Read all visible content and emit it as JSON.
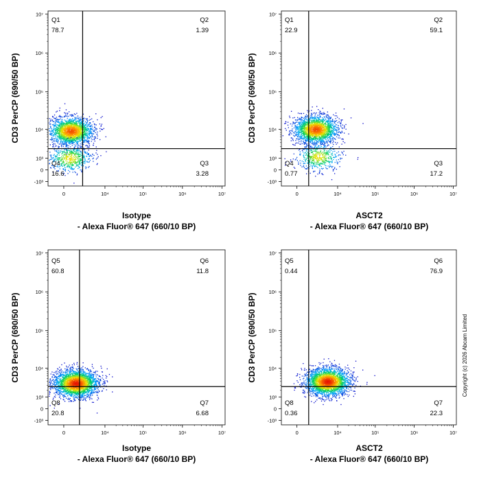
{
  "chart_data": [
    {
      "type": "scatter",
      "title": "",
      "xlabel_line1": "Isotype",
      "xlabel_line2": "- Alexa Fluor® 647  (660/10 BP)",
      "ylabel": "CD3 PerCP (690/50 BP)",
      "x_ticks": [
        "0",
        "10⁴",
        "10⁵",
        "10⁶",
        "10⁷"
      ],
      "y_ticks": [
        "10⁷",
        "10⁶",
        "10⁵",
        "10⁴",
        "10³",
        "0",
        "-10³"
      ],
      "gate": {
        "x": 2000,
        "y": 2500
      },
      "quadrants": [
        {
          "name": "Q1",
          "value": "78.7"
        },
        {
          "name": "Q2",
          "value": "1.39"
        },
        {
          "name": "Q3",
          "value": "3.28"
        },
        {
          "name": "Q4",
          "value": "16.6"
        }
      ],
      "populations": [
        {
          "x": 500,
          "y": 9000,
          "weight": 0.78
        },
        {
          "x": 400,
          "y": 1000,
          "weight": 0.22
        }
      ]
    },
    {
      "type": "scatter",
      "title": "",
      "xlabel_line1": "ASCT2",
      "xlabel_line2": "- Alexa Fluor® 647  (660/10 BP)",
      "ylabel": "CD3 PerCP (690/50 BP)",
      "x_ticks": [
        "0",
        "10⁴",
        "10⁵",
        "10⁶",
        "10⁷"
      ],
      "y_ticks": [
        "10⁷",
        "10⁶",
        "10⁵",
        "10⁴",
        "10³",
        "0",
        "-10³"
      ],
      "gate": {
        "x": 1000,
        "y": 2500
      },
      "quadrants": [
        {
          "name": "Q1",
          "value": "22.9"
        },
        {
          "name": "Q2",
          "value": "59.1"
        },
        {
          "name": "Q3",
          "value": "17.2"
        },
        {
          "name": "Q4",
          "value": "0.77"
        }
      ],
      "populations": [
        {
          "x": 2000,
          "y": 10000,
          "weight": 0.8
        },
        {
          "x": 2500,
          "y": 1200,
          "weight": 0.2
        }
      ]
    },
    {
      "type": "scatter",
      "title": "",
      "xlabel_line1": "Isotype",
      "xlabel_line2": "- Alexa Fluor® 647  (660/10 BP)",
      "ylabel": "CD3 PerCP (690/50 BP)",
      "x_ticks": [
        "0",
        "10⁴",
        "10⁵",
        "10⁶",
        "10⁷"
      ],
      "y_ticks": [
        "10⁷",
        "10⁶",
        "10⁵",
        "10⁴",
        "10³",
        "0",
        "-10³"
      ],
      "gate": {
        "x": 1500,
        "y": 2700
      },
      "quadrants": [
        {
          "name": "Q5",
          "value": "60.8"
        },
        {
          "name": "Q6",
          "value": "11.8"
        },
        {
          "name": "Q7",
          "value": "6.68"
        },
        {
          "name": "Q8",
          "value": "20.8"
        }
      ],
      "populations": [
        {
          "x": 1000,
          "y": 3500,
          "weight": 1.0
        }
      ]
    },
    {
      "type": "scatter",
      "title": "",
      "xlabel_line1": "ASCT2",
      "xlabel_line2": "- Alexa Fluor® 647  (660/10 BP)",
      "ylabel": "CD3 PerCP (690/50 BP)",
      "x_ticks": [
        "0",
        "10⁴",
        "10⁵",
        "10⁶",
        "10⁷"
      ],
      "y_ticks": [
        "10⁷",
        "10⁶",
        "10⁵",
        "10⁴",
        "10³",
        "0",
        "-10³"
      ],
      "gate": {
        "x": 1000,
        "y": 2700
      },
      "quadrants": [
        {
          "name": "Q5",
          "value": "0.44"
        },
        {
          "name": "Q6",
          "value": "76.9"
        },
        {
          "name": "Q7",
          "value": "22.3"
        },
        {
          "name": "Q8",
          "value": "0.36"
        }
      ],
      "populations": [
        {
          "x": 5000,
          "y": 4000,
          "weight": 1.0
        }
      ]
    }
  ],
  "copyright": "Copyright (c) 2026 Abcam Limited",
  "colors": {
    "gate_line": "#000000",
    "frame": "#000000"
  }
}
